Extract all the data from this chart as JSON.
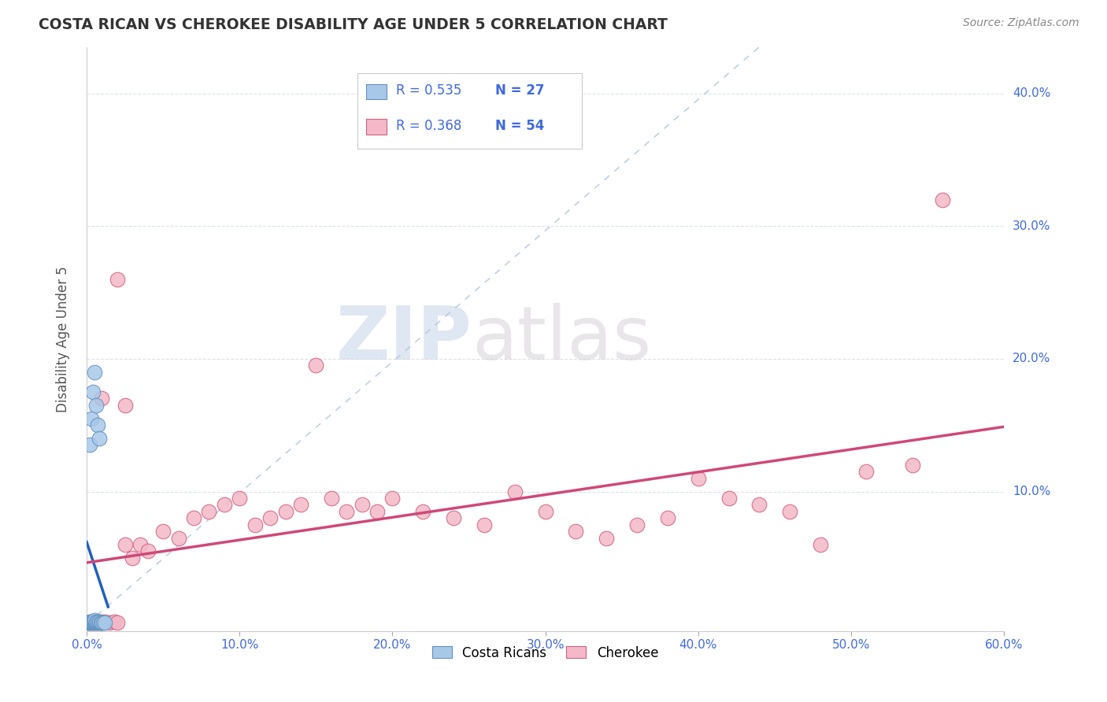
{
  "title": "COSTA RICAN VS CHEROKEE DISABILITY AGE UNDER 5 CORRELATION CHART",
  "source": "Source: ZipAtlas.com",
  "ylabel": "Disability Age Under 5",
  "xlim": [
    0.0,
    0.6
  ],
  "ylim": [
    -0.005,
    0.435
  ],
  "xticks": [
    0.0,
    0.1,
    0.2,
    0.3,
    0.4,
    0.5,
    0.6
  ],
  "xticklabels": [
    "0.0%",
    "10.0%",
    "20.0%",
    "30.0%",
    "40.0%",
    "50.0%",
    "60.0%"
  ],
  "ytick_vals": [
    0.1,
    0.2,
    0.3,
    0.4
  ],
  "ytick_labels": [
    "10.0%",
    "20.0%",
    "30.0%",
    "40.0%"
  ],
  "costa_rican_color": "#a8c8e8",
  "cherokee_color": "#f4b8c8",
  "costa_rican_edge": "#6090c0",
  "cherokee_edge": "#d06080",
  "trend_blue": "#2060c0",
  "trend_pink": "#d04878",
  "diag_color": "#b0c4de",
  "legend_r1": "R = 0.535",
  "legend_n1": "N = 27",
  "legend_r2": "R = 0.368",
  "legend_n2": "N = 54",
  "label_costa": "Costa Ricans",
  "label_cherokee": "Cherokee",
  "watermark_zip": "ZIP",
  "watermark_atlas": "atlas",
  "background_color": "#ffffff",
  "grid_color": "#d8dfe8",
  "text_color": "#4169e1",
  "title_color": "#333333",
  "cr_x": [
    0.001,
    0.002,
    0.002,
    0.003,
    0.003,
    0.004,
    0.004,
    0.005,
    0.005,
    0.005,
    0.006,
    0.006,
    0.007,
    0.007,
    0.008,
    0.008,
    0.009,
    0.01,
    0.011,
    0.012,
    0.003,
    0.004,
    0.005,
    0.006,
    0.007,
    0.002,
    0.008
  ],
  "cr_y": [
    0.001,
    0.001,
    0.002,
    0.001,
    0.002,
    0.001,
    0.002,
    0.001,
    0.002,
    0.003,
    0.001,
    0.002,
    0.001,
    0.002,
    0.001,
    0.002,
    0.001,
    0.001,
    0.001,
    0.001,
    0.155,
    0.175,
    0.19,
    0.165,
    0.15,
    0.135,
    0.14
  ],
  "ck_x": [
    0.001,
    0.002,
    0.003,
    0.004,
    0.005,
    0.006,
    0.007,
    0.008,
    0.009,
    0.01,
    0.012,
    0.015,
    0.018,
    0.02,
    0.025,
    0.03,
    0.035,
    0.04,
    0.05,
    0.06,
    0.07,
    0.08,
    0.09,
    0.1,
    0.11,
    0.12,
    0.13,
    0.14,
    0.15,
    0.16,
    0.17,
    0.18,
    0.19,
    0.2,
    0.22,
    0.24,
    0.26,
    0.28,
    0.3,
    0.32,
    0.34,
    0.36,
    0.38,
    0.4,
    0.42,
    0.44,
    0.46,
    0.48,
    0.51,
    0.54,
    0.01,
    0.02,
    0.56,
    0.025
  ],
  "ck_y": [
    0.001,
    0.001,
    0.002,
    0.001,
    0.002,
    0.001,
    0.002,
    0.001,
    0.002,
    0.001,
    0.002,
    0.001,
    0.002,
    0.001,
    0.06,
    0.05,
    0.06,
    0.055,
    0.07,
    0.065,
    0.08,
    0.085,
    0.09,
    0.095,
    0.075,
    0.08,
    0.085,
    0.09,
    0.195,
    0.095,
    0.085,
    0.09,
    0.085,
    0.095,
    0.085,
    0.08,
    0.075,
    0.1,
    0.085,
    0.07,
    0.065,
    0.075,
    0.08,
    0.11,
    0.095,
    0.09,
    0.085,
    0.06,
    0.115,
    0.12,
    0.17,
    0.26,
    0.32,
    0.165
  ]
}
